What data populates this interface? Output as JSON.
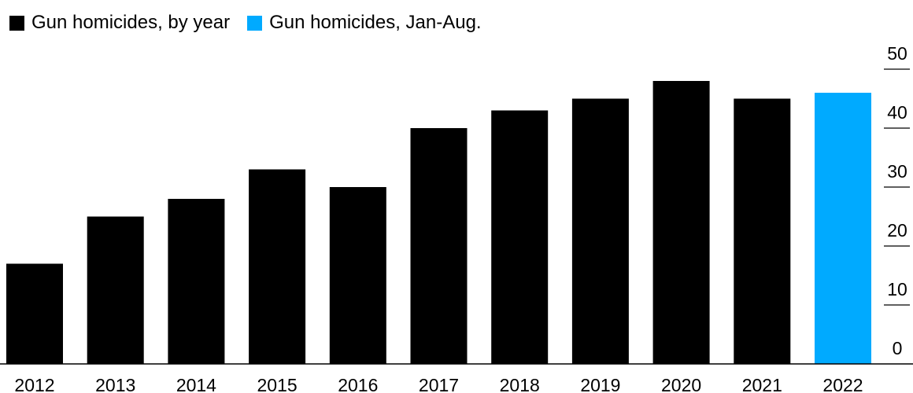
{
  "legend": [
    {
      "label": "Gun homicides, by year",
      "color": "#000000"
    },
    {
      "label": "Gun homicides, Jan-Aug.",
      "color": "#00aaff"
    }
  ],
  "chart_data": {
    "type": "bar",
    "categories": [
      "2012",
      "2013",
      "2014",
      "2015",
      "2016",
      "2017",
      "2018",
      "2019",
      "2020",
      "2021",
      "2022"
    ],
    "values": [
      17,
      25,
      28,
      33,
      30,
      40,
      43,
      45,
      48,
      45,
      46
    ],
    "series": [
      {
        "name": "Gun homicides, by year",
        "color": "#000000",
        "values": [
          17,
          25,
          28,
          33,
          30,
          40,
          43,
          45,
          48,
          45,
          null
        ]
      },
      {
        "name": "Gun homicides, Jan-Aug.",
        "color": "#00aaff",
        "values": [
          null,
          null,
          null,
          null,
          null,
          null,
          null,
          null,
          null,
          null,
          46
        ]
      }
    ],
    "y_ticks": [
      0,
      10,
      20,
      30,
      40,
      50
    ],
    "ylim": [
      0,
      52
    ],
    "y_axis_side": "right",
    "legend_position": "top-left",
    "grid": false
  }
}
